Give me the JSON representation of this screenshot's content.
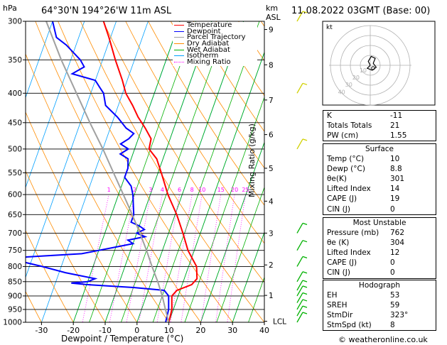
{
  "header": {
    "p_unit": "hPa",
    "location": "64°30'N  194°26'W  11m  ASL",
    "km_unit": "km",
    "asl": "ASL",
    "datetime": "11.08.2022  03GMT  (Base: 00)",
    "credit": "© weatheronline.co.uk"
  },
  "legend": [
    {
      "label": "Temperature",
      "color": "#ff0000"
    },
    {
      "label": "Dewpoint",
      "color": "#0000ff"
    },
    {
      "label": "Parcel Trajectory",
      "color": "#a0a0a0"
    },
    {
      "label": "Dry Adiabat",
      "color": "#ff8c00"
    },
    {
      "label": "Wet Adiabat",
      "color": "#00b000"
    },
    {
      "label": "Isotherm",
      "color": "#00a0ff"
    },
    {
      "label": "Mixing Ratio",
      "color": "#ff00ff"
    }
  ],
  "hodograph": {
    "label": "kt",
    "ring_labels": [
      "40",
      "30",
      "20",
      "10"
    ]
  },
  "indices": {
    "rows": [
      {
        "k": "K",
        "v": "-11"
      },
      {
        "k": "Totals Totals",
        "v": "21"
      },
      {
        "k": "PW (cm)",
        "v": "1.55"
      }
    ]
  },
  "surface": {
    "title": "Surface",
    "rows": [
      {
        "k": "Temp (°C)",
        "v": "10"
      },
      {
        "k": "Dewp (°C)",
        "v": "8.8"
      },
      {
        "k": "θe(K)",
        "v": "301"
      },
      {
        "k": "Lifted Index",
        "v": "14"
      },
      {
        "k": "CAPE (J)",
        "v": "19"
      },
      {
        "k": "CIN (J)",
        "v": "0"
      }
    ]
  },
  "most_unstable": {
    "title": "Most Unstable",
    "rows": [
      {
        "k": "Pressure (mb)",
        "v": "762"
      },
      {
        "k": "θe (K)",
        "v": "304"
      },
      {
        "k": "Lifted Index",
        "v": "12"
      },
      {
        "k": "CAPE (J)",
        "v": "0"
      },
      {
        "k": "CIN (J)",
        "v": "0"
      }
    ]
  },
  "hodo_table": {
    "title": "Hodograph",
    "rows": [
      {
        "k": "EH",
        "v": "53"
      },
      {
        "k": "SREH",
        "v": "59"
      },
      {
        "k": "StmDir",
        "v": "323°"
      },
      {
        "k": "StmSpd (kt)",
        "v": "8"
      }
    ]
  },
  "chart_data": {
    "type": "line",
    "title": "64°30'N  194°26'W  11m  ASL",
    "xlabel": "Dewpoint / Temperature (°C)",
    "ylabel": "hPa",
    "right_label": "Mixing Ratio (g/kg)",
    "xlim": [
      -35,
      40
    ],
    "x_ticks": [
      -30,
      -20,
      -10,
      0,
      10,
      20,
      30,
      40
    ],
    "p_ticks": [
      300,
      350,
      400,
      450,
      500,
      550,
      600,
      650,
      700,
      750,
      800,
      850,
      900,
      950,
      1000
    ],
    "km_ticks": [
      {
        "label": "9",
        "p": 310
      },
      {
        "label": "8",
        "p": 357
      },
      {
        "label": "7",
        "p": 411
      },
      {
        "label": "6",
        "p": 472
      },
      {
        "label": "5",
        "p": 540
      },
      {
        "label": "4",
        "p": 616
      },
      {
        "label": "3",
        "p": 700
      },
      {
        "label": "2",
        "p": 795
      },
      {
        "label": "1",
        "p": 898
      },
      {
        "label": "LCL",
        "p": 996
      }
    ],
    "mixing_ratio_labels": [
      "1",
      "2",
      "3",
      "4",
      "6",
      "8",
      "10",
      "15",
      "20",
      "25"
    ],
    "series": [
      {
        "name": "Temperature",
        "color": "#ff0000",
        "p": [
          1000,
          950,
          900,
          880,
          860,
          840,
          800,
          750,
          700,
          650,
          600,
          550,
          520,
          500,
          480,
          460,
          440,
          420,
          400,
          380,
          350,
          320,
          300
        ],
        "t": [
          10,
          9.5,
          8,
          9,
          13,
          14,
          12.5,
          8,
          4.5,
          0.5,
          -4.5,
          -9,
          -12,
          -15.5,
          -16,
          -19,
          -22.5,
          -25.5,
          -29,
          -31.5,
          -36,
          -40.5,
          -44
        ]
      },
      {
        "name": "Dewpoint",
        "color": "#0000ff",
        "p": [
          1000,
          950,
          900,
          880,
          870,
          860,
          855,
          850,
          840,
          820,
          800,
          780,
          770,
          760,
          750,
          740,
          730,
          720,
          710,
          700,
          690,
          680,
          670,
          650,
          600,
          580,
          560,
          540,
          520,
          510,
          500,
          490,
          480,
          470,
          460,
          440,
          420,
          400,
          390,
          380,
          370,
          360,
          350,
          330,
          320,
          300
        ],
        "t": [
          9,
          8.5,
          7,
          5,
          -5,
          -20,
          -25,
          -20,
          -18,
          -28,
          -36,
          -45,
          -42,
          -25,
          -20,
          -15,
          -10,
          -12,
          -7,
          -10,
          -8,
          -10,
          -13,
          -13,
          -15.5,
          -17,
          -20,
          -20,
          -21,
          -24,
          -22,
          -25,
          -23,
          -22,
          -25,
          -29,
          -34,
          -36,
          -38,
          -40,
          -48,
          -45,
          -47,
          -53,
          -57,
          -60
        ]
      },
      {
        "name": "Parcel Trajectory",
        "color": "#a0a0a0",
        "p": [
          1000,
          950,
          900,
          850,
          800,
          750,
          700,
          650,
          600,
          550,
          500,
          450,
          400,
          350,
          300
        ],
        "t": [
          10,
          7.5,
          5,
          2,
          -1.5,
          -5,
          -9,
          -13.5,
          -18.5,
          -24,
          -30,
          -37,
          -44.5,
          -53,
          -62
        ]
      }
    ]
  }
}
